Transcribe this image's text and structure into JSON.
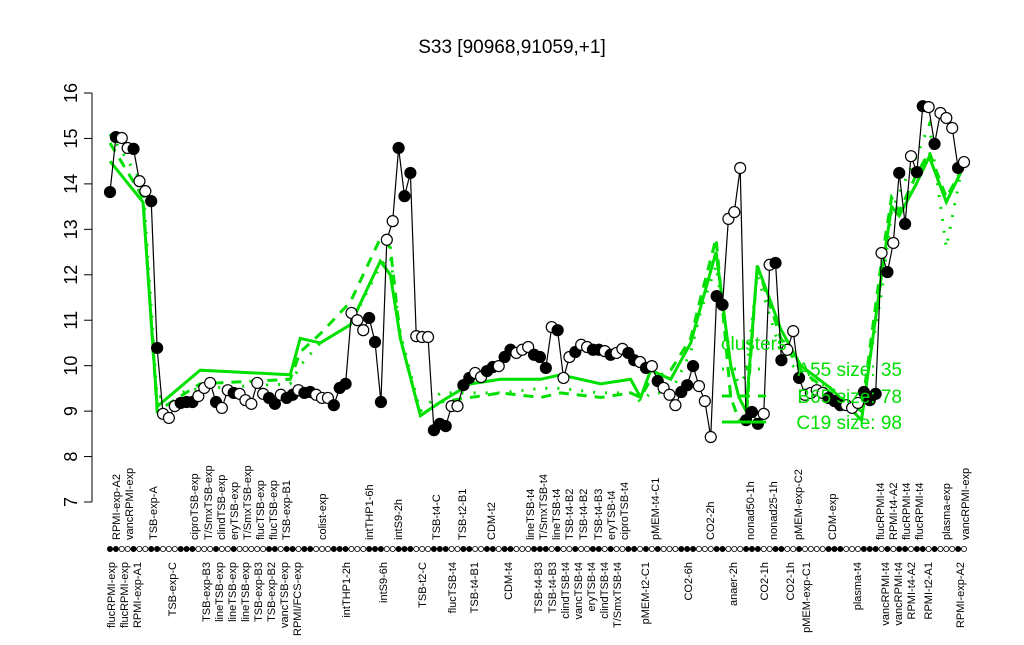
{
  "chart_data": {
    "type": "line",
    "title": "S33 [90968,91059,+1]",
    "ylim": [
      7,
      16
    ],
    "yticks": [
      7,
      8,
      9,
      10,
      11,
      12,
      13,
      14,
      15,
      16
    ],
    "grid": false,
    "legend_placement": "right-middle",
    "colors": {
      "points": "#000000",
      "clusters": "#00e000"
    },
    "x_labels_top": [
      "RPMI-exp-A2",
      "vancRPMI-exp",
      "TSB-exp-A",
      "ciproTSB-exp",
      "T/SmxTSB-exp",
      "clindTSB-exp",
      "eryTSB-exp",
      "T/SmxTSB-exp",
      "flucTSB-exp",
      "flucTSB-exp",
      "TSB-exp-B1",
      "colist-exp",
      "intTHP1-6h",
      "intS9-2h",
      "TSB-t4-C",
      "TSB-t2-B1",
      "CDM-t2",
      "lineTSB-t4",
      "T/SmxTSB-t4",
      "lineTSB-t4",
      "TSB-t4-B2",
      "TSB-t4-B2",
      "TSB-t4-B3",
      "eryTSB-t4",
      "ciproTSB-t4",
      "pMEM-t4-C1",
      "CO2-2h",
      "nonad50-1h",
      "nonad25-1h",
      "pMEM-exp-C2",
      "CDM-exp",
      "flucRPMI-t4",
      "RPMI-t4-A2",
      "flucRPMI-t4",
      "flucRPMI-t4",
      "plasma-exp",
      "vancRPMI-exp"
    ],
    "x_labels_bottom": [
      "flucRPMI-exp",
      "flucRPMI-exp",
      "RPMI-exp-A1",
      "TSB-exp-C",
      "TSB-exp-B3",
      "lineTSB-exp",
      "lineTSB-exp",
      "lineTSB-exp",
      "TSB-exp-B3",
      "TSB-exp-B2",
      "vancTSB-exp",
      "RPMI/FCS-exp",
      "intTHP1-2h",
      "intS9-6h",
      "TSB-t2-C",
      "flucTSB-t4",
      "TSB-t4-B1",
      "CDM-t4",
      "TSB-t4-B3",
      "TSB-t4-B3",
      "clindTSB-t4",
      "vancTSB-t4",
      "eryTSB-t4",
      "clindTSB-t4",
      "T/SmxTSB-t4",
      "pMEM-t2-C1",
      "CO2-6h",
      "anaer-2h",
      "CO2-1h",
      "CO2-1h",
      "pMEM-exp-C1",
      "plasma-t4",
      "vancRPMI-t4",
      "vancRPMI-t4",
      "RPMI-t4-A2",
      "RPMI-t2-A1",
      "RPMI-exp-A2"
    ],
    "points": {
      "values": [
        13.82,
        15.03,
        15.01,
        14.79,
        14.77,
        14.06,
        13.84,
        13.62,
        10.39,
        8.94,
        8.85,
        9.11,
        9.18,
        9.2,
        9.2,
        9.33,
        9.51,
        9.62,
        9.2,
        9.07,
        9.46,
        9.4,
        9.38,
        9.24,
        9.16,
        9.62,
        9.38,
        9.29,
        9.16,
        9.36,
        9.29,
        9.36,
        9.46,
        9.4,
        9.42,
        9.36,
        9.29,
        9.29,
        9.13,
        9.51,
        9.6,
        11.16,
        11.0,
        10.78,
        11.05,
        10.52,
        9.2,
        12.77,
        13.18,
        14.79,
        13.73,
        14.24,
        10.65,
        10.63,
        10.63,
        8.58,
        8.72,
        8.67,
        9.11,
        9.11,
        9.57,
        9.73,
        9.84,
        9.75,
        9.88,
        9.97,
        9.99,
        10.19,
        10.35,
        10.28,
        10.35,
        10.41,
        10.24,
        10.19,
        9.95,
        10.85,
        10.78,
        9.73,
        10.19,
        10.3,
        10.46,
        10.41,
        10.35,
        10.35,
        10.32,
        10.24,
        10.28,
        10.37,
        10.28,
        10.12,
        10.08,
        9.95,
        9.99,
        9.66,
        9.51,
        9.36,
        9.13,
        9.42,
        9.57,
        9.99,
        9.55,
        9.22,
        8.43,
        11.53,
        11.34,
        13.23,
        13.38,
        14.35,
        8.8,
        8.98,
        8.72,
        8.94,
        12.22,
        12.26,
        10.12,
        10.35,
        10.76,
        9.73,
        9.36,
        9.4,
        9.46,
        9.4,
        9.29,
        9.22,
        9.13,
        9.13,
        9.07,
        9.18,
        9.42,
        9.24,
        9.38,
        12.48,
        12.06,
        12.7,
        14.24,
        13.12,
        14.61,
        14.26,
        15.71,
        15.69,
        14.88,
        15.56,
        15.45,
        15.23,
        14.35,
        14.48
      ],
      "filled": [
        1,
        1,
        0,
        0,
        1,
        0,
        0,
        1,
        1,
        0,
        0,
        0,
        1,
        1,
        1,
        0,
        0,
        0,
        1,
        0,
        0,
        1,
        0,
        0,
        0,
        0,
        0,
        1,
        1,
        0,
        1,
        1,
        0,
        1,
        1,
        0,
        0,
        0,
        1,
        1,
        1,
        0,
        0,
        0,
        1,
        1,
        1,
        0,
        0,
        1,
        1,
        1,
        0,
        0,
        0,
        1,
        1,
        1,
        0,
        0,
        1,
        1,
        0,
        0,
        1,
        1,
        0,
        1,
        1,
        0,
        0,
        0,
        1,
        1,
        1,
        0,
        1,
        0,
        0,
        1,
        0,
        0,
        1,
        1,
        0,
        1,
        0,
        0,
        1,
        1,
        0,
        1,
        0,
        1,
        0,
        0,
        0,
        1,
        1,
        1,
        0,
        0,
        0,
        1,
        1,
        0,
        0,
        0,
        1,
        1,
        1,
        0,
        0,
        1,
        1,
        0,
        0,
        1,
        0,
        0,
        0,
        0,
        1,
        1,
        1,
        0,
        0,
        0,
        1,
        1,
        1,
        0,
        1,
        0,
        1,
        1,
        0,
        1,
        1,
        0,
        1,
        0,
        0,
        0,
        1,
        0
      ]
    },
    "legend": {
      "title": "clusters",
      "entries": [
        {
          "label": "A55 size: 35",
          "style": "dotted"
        },
        {
          "label": "B65 size: 78",
          "style": "dashed"
        },
        {
          "label": "C19 size: 98",
          "style": "solid"
        }
      ]
    },
    "series": [
      {
        "name": "A55",
        "style": "dotted",
        "index": [
          0,
          5.6,
          8,
          15.3,
          30.6,
          32.3,
          35.7,
          40.8,
          45.9,
          47.6,
          49.3,
          52.7,
          56.1,
          61.2,
          66.3,
          73.1,
          76.5,
          83.3,
          88.4,
          90.1,
          91.8,
          95.2,
          98.6,
          100.3,
          102.9,
          105.4,
          106.8,
          108,
          109.9,
          113.9,
          117.3,
          122.4,
          127.6,
          131,
          132.7,
          134,
          136.9,
          139.1,
          142,
          145
        ],
        "values": [
          15.1,
          14.0,
          9.3,
          9.5,
          9.6,
          10.0,
          10.5,
          10.9,
          12.2,
          12.4,
          10.7,
          9.0,
          9.4,
          9.4,
          9.4,
          9.5,
          9.5,
          9.4,
          9.4,
          9.2,
          9.4,
          9.4,
          10.3,
          11.2,
          12.2,
          10.0,
          9.6,
          9.8,
          12.0,
          10.3,
          9.8,
          9.5,
          9.1,
          11.6,
          13.4,
          13.8,
          14.6,
          15.3,
          12.6,
          14.6
        ]
      },
      {
        "name": "B65",
        "style": "dashed",
        "index": [
          0,
          5.6,
          8,
          15.3,
          30.6,
          32.3,
          35.7,
          40.8,
          45.9,
          47.6,
          49.3,
          52.7,
          56.1,
          61.2,
          66.3,
          73.1,
          76.5,
          83.3,
          88.4,
          90.1,
          91.8,
          95.2,
          98.6,
          100.3,
          102.9,
          105.4,
          106.8,
          108,
          109.9,
          113.9,
          117.3,
          122.4,
          127.6,
          131,
          132.7,
          134,
          136.9,
          139.1,
          142,
          145
        ],
        "values": [
          14.9,
          13.7,
          9.0,
          9.6,
          9.7,
          10.3,
          10.7,
          11.4,
          12.8,
          12.6,
          10.6,
          8.9,
          9.2,
          9.3,
          9.4,
          9.3,
          9.4,
          9.3,
          9.4,
          9.3,
          9.7,
          9.9,
          10.6,
          11.5,
          12.8,
          9.3,
          8.8,
          8.8,
          12.2,
          10.6,
          9.9,
          9.4,
          9.0,
          12.3,
          13.7,
          13.4,
          14.2,
          14.7,
          13.7,
          14.4
        ]
      },
      {
        "name": "C19",
        "style": "solid",
        "index": [
          0,
          5.6,
          8,
          15.3,
          30.6,
          32.3,
          35.7,
          40.8,
          45.9,
          47.6,
          49.3,
          52.7,
          56.1,
          61.2,
          66.3,
          73.1,
          76.5,
          83.3,
          88.4,
          90.1,
          91.8,
          95.2,
          98.6,
          100.3,
          102.9,
          105.4,
          106.8,
          108,
          109.9,
          113.9,
          117.3,
          122.4,
          127.6,
          131,
          132.7,
          134,
          136.9,
          139.1,
          142,
          145
        ],
        "values": [
          14.5,
          13.6,
          9.1,
          9.9,
          9.8,
          10.6,
          10.5,
          10.9,
          12.3,
          12.0,
          10.6,
          8.9,
          9.2,
          9.6,
          9.7,
          9.7,
          9.8,
          9.6,
          9.7,
          9.3,
          9.9,
          9.7,
          10.5,
          11.3,
          12.5,
          10.0,
          9.3,
          9.0,
          12.2,
          10.8,
          10.0,
          9.5,
          8.8,
          12.0,
          13.5,
          13.3,
          14.0,
          14.6,
          13.6,
          14.4
        ]
      }
    ]
  }
}
